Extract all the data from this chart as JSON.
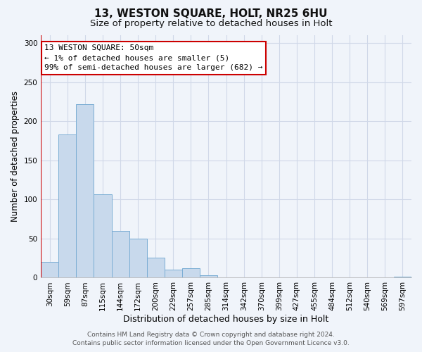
{
  "title": "13, WESTON SQUARE, HOLT, NR25 6HU",
  "subtitle": "Size of property relative to detached houses in Holt",
  "xlabel": "Distribution of detached houses by size in Holt",
  "ylabel": "Number of detached properties",
  "bar_labels": [
    "30sqm",
    "59sqm",
    "87sqm",
    "115sqm",
    "144sqm",
    "172sqm",
    "200sqm",
    "229sqm",
    "257sqm",
    "285sqm",
    "314sqm",
    "342sqm",
    "370sqm",
    "399sqm",
    "427sqm",
    "455sqm",
    "484sqm",
    "512sqm",
    "540sqm",
    "569sqm",
    "597sqm"
  ],
  "bar_values": [
    20,
    183,
    222,
    107,
    60,
    50,
    26,
    10,
    12,
    3,
    0,
    0,
    0,
    0,
    0,
    0,
    0,
    0,
    0,
    0,
    1
  ],
  "bar_color": "#c8d9ec",
  "bar_edge_color": "#7aadd4",
  "highlight_line_color": "#cc0000",
  "annotation_box_color": "#ffffff",
  "annotation_box_edge_color": "#cc0000",
  "annotation_line1": "13 WESTON SQUARE: 50sqm",
  "annotation_line2": "← 1% of detached houses are smaller (5)",
  "annotation_line3": "99% of semi-detached houses are larger (682) →",
  "ylim": [
    0,
    310
  ],
  "yticks": [
    0,
    50,
    100,
    150,
    200,
    250,
    300
  ],
  "grid_color": "#d0d8e8",
  "background_color": "#f0f4fa",
  "footer_line1": "Contains HM Land Registry data © Crown copyright and database right 2024.",
  "footer_line2": "Contains public sector information licensed under the Open Government Licence v3.0.",
  "title_fontsize": 11,
  "subtitle_fontsize": 9.5,
  "xlabel_fontsize": 9,
  "ylabel_fontsize": 8.5,
  "tick_fontsize": 7.5,
  "annotation_fontsize": 8,
  "footer_fontsize": 6.5
}
